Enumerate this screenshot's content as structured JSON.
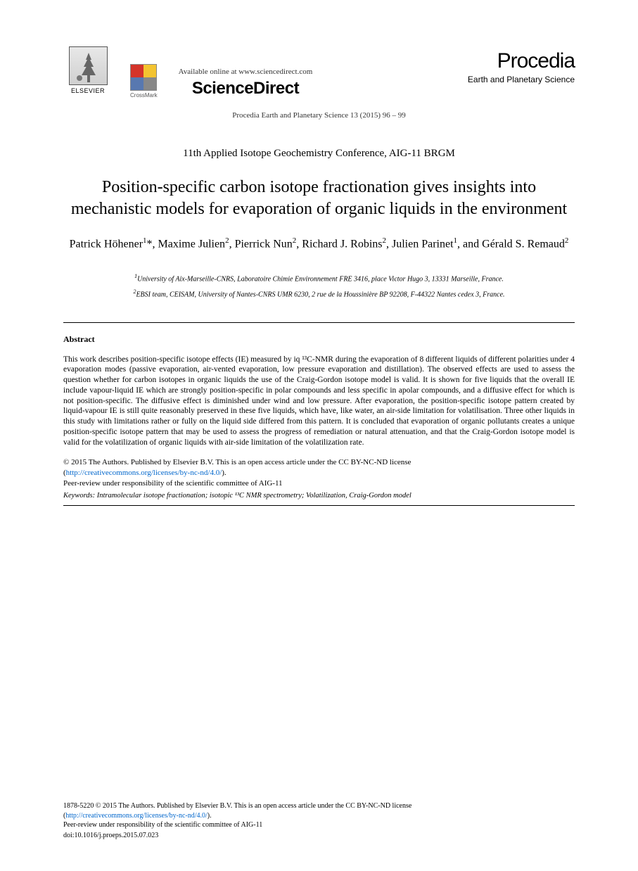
{
  "header": {
    "elsevier_label": "ELSEVIER",
    "available_text": "Available online at www.sciencedirect.com",
    "sciencedirect": "ScienceDirect",
    "crossmark_label": "CrossMark",
    "procedia_title": "Procedia",
    "procedia_sub": "Earth and Planetary Science",
    "journal_ref": "Procedia Earth and Planetary Science 13 (2015) 96 – 99",
    "crossmark_colors": {
      "q1": "#d4342a",
      "q2": "#f4c430",
      "q3": "#5878b0",
      "q4": "#888888"
    }
  },
  "conference": "11th Applied Isotope Geochemistry Conference, AIG-11 BRGM",
  "title": "Position-specific carbon isotope fractionation gives insights into mechanistic models for evaporation of organic liquids in the environment",
  "authors_html": "Patrick Höhener<sup>1</sup>*, Maxime Julien<sup>2</sup>, Pierrick Nun<sup>2</sup>, Richard J. Robins<sup>2</sup>, Julien Parinet<sup>1</sup>, and Gérald S. Remaud<sup>2</sup>",
  "affiliations": {
    "a1": "University of Aix-Marseille-CNRS, Laboratoire Chimie Environnement FRE 3416, place Victor Hugo 3, 13331 Marseille, France.",
    "a2": "EBSI team, CEISAM, University of Nantes-CNRS UMR 6230, 2 rue de la Houssinière BP 92208, F-44322 Nantes cedex 3, France."
  },
  "abstract": {
    "heading": "Abstract",
    "body": "This work describes position-specific isotope effects (IE) measured by iq ¹³C-NMR during the evaporation of 8 different liquids of different polarities under 4 evaporation modes (passive evaporation, air-vented evaporation, low pressure evaporation and distillation). The observed effects are used to assess the question whether for carbon isotopes in organic liquids the use of the Craig-Gordon isotope model is valid. It is shown for five liquids that the overall IE include vapour-liquid IE which are strongly position-specific in polar compounds and less specific in apolar compounds, and a diffusive effect for which is not position-specific. The diffusive effect is diminished under wind and low pressure. After evaporation, the position-specific isotope pattern created by liquid-vapour IE is still quite reasonably preserved in these five liquids, which have, like water, an air-side limitation for volatilisation. Three other liquids in this study with limitations rather or fully on the liquid side differed from this pattern. It is concluded that evaporation of organic pollutants creates a unique position-specific isotope pattern that may be used to assess the progress of remediation or natural attenuation, and that the Craig-Gordon isotope model is valid for the volatilization of organic liquids with air-side limitation of the volatilization rate."
  },
  "copyright": {
    "line1": "© 2015 The Authors. Published by Elsevier B.V. This is an open access article under the CC BY-NC-ND license",
    "cc_url_text": "http://creativecommons.org/licenses/by-nc-nd/4.0/",
    "peer_review": "Peer-review under responsibility of the scientific committee of AIG-11"
  },
  "keywords": {
    "label": "Keywords:",
    "text": "Intramolecular isotope fractionation; isotopic ¹³C NMR spectrometry; Volatilization, Craig-Gordon model"
  },
  "footer": {
    "issn_line": "1878-5220 © 2015 The Authors. Published by Elsevier B.V. This is an open access article under the CC BY-NC-ND license",
    "cc_url_text": "http://creativecommons.org/licenses/by-nc-nd/4.0/",
    "peer_review": "Peer-review under responsibility of the scientific committee of AIG-11",
    "doi": "doi:10.1016/j.proeps.2015.07.023"
  },
  "colors": {
    "link": "#0066cc",
    "text": "#000000",
    "background": "#ffffff"
  }
}
